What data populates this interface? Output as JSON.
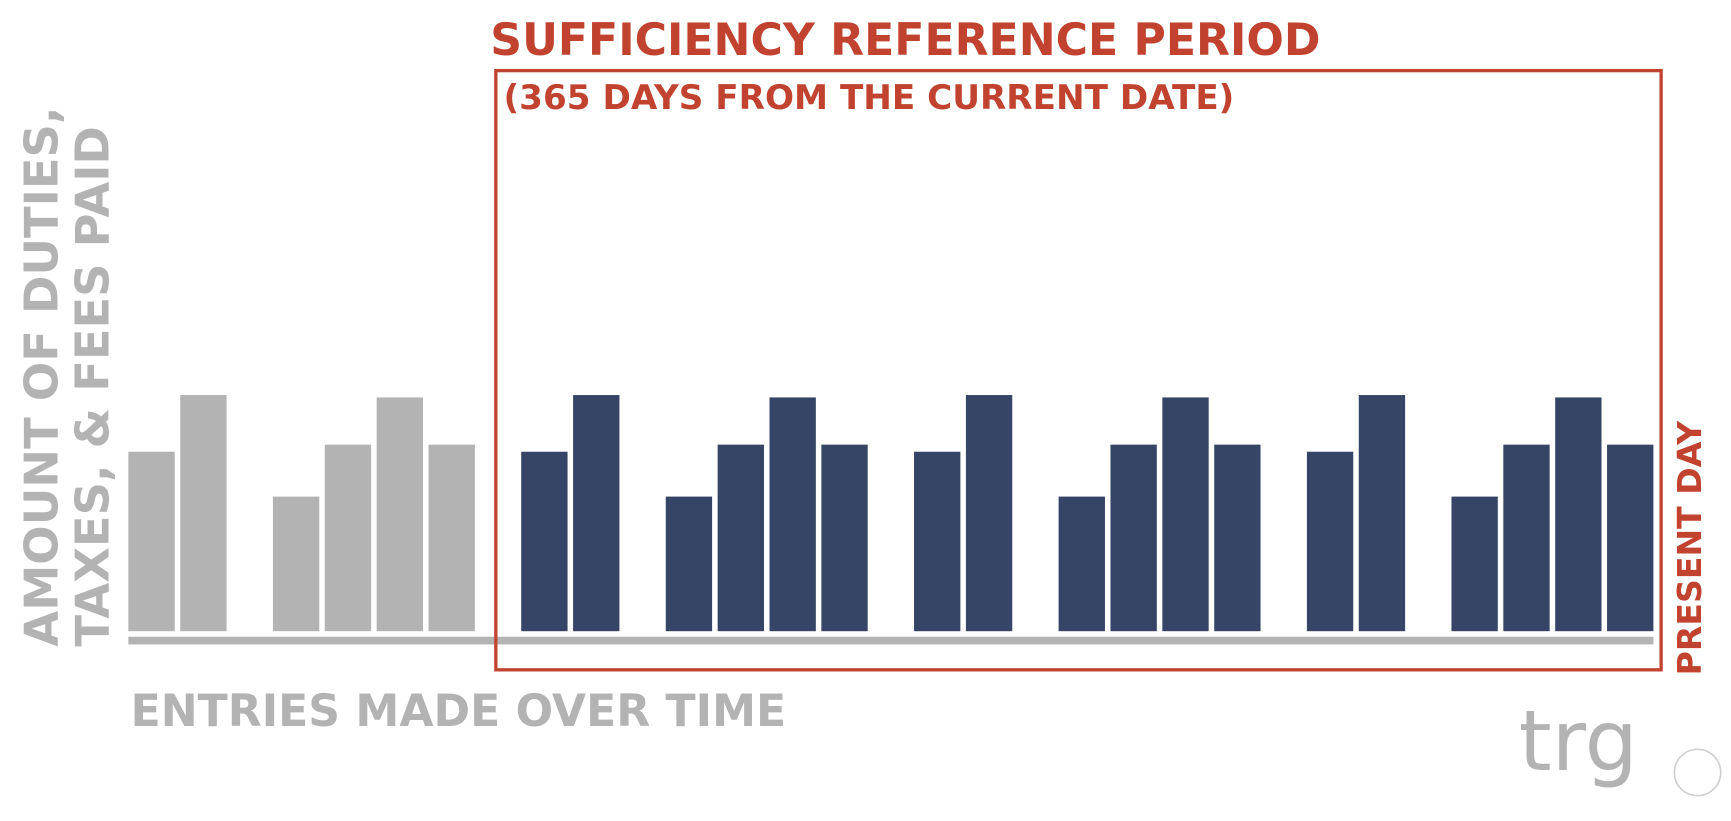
{
  "chart_data": {
    "type": "bar",
    "title": "SUFFICIENCY REFERENCE PERIOD",
    "subtitle": "(365 DAYS FROM THE CURRENT DATE)",
    "y_label": [
      "AMOUNT OF DUTIES,",
      "TAXES, & FEES PAID"
    ],
    "x_label": "ENTRIES MADE OVER TIME",
    "annotation": "PRESENT DAY",
    "logo": "trg",
    "ylim": [
      0,
      100
    ],
    "axis_color": "#b3b3b3",
    "highlight_color": "#c1432f",
    "groups": [
      {
        "color": "#b3b3b3",
        "values": [
          76,
          100
        ]
      },
      {
        "color": "#b3b3b3",
        "values": [
          57,
          79,
          99,
          79
        ]
      },
      {
        "color": "#364565",
        "values": [
          76,
          100
        ]
      },
      {
        "color": "#364565",
        "values": [
          57,
          79,
          99,
          79
        ]
      },
      {
        "color": "#364565",
        "values": [
          76,
          100
        ]
      },
      {
        "color": "#364565",
        "values": [
          57,
          79,
          99,
          79
        ]
      },
      {
        "color": "#364565",
        "values": [
          76,
          100
        ]
      },
      {
        "color": "#364565",
        "values": [
          57,
          79,
          99,
          79
        ]
      }
    ]
  }
}
